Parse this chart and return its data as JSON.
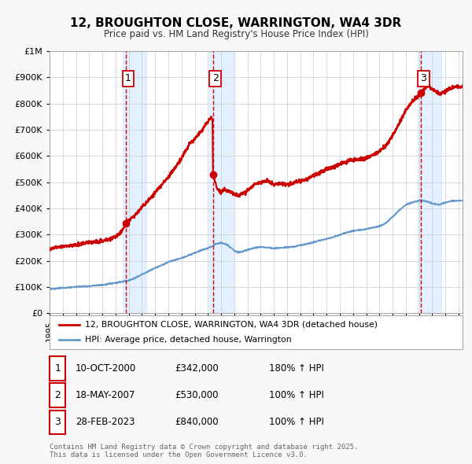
{
  "title": "12, BROUGHTON CLOSE, WARRINGTON, WA4 3DR",
  "subtitle": "Price paid vs. HM Land Registry's House Price Index (HPI)",
  "background_color": "#f8f8f8",
  "plot_bg_color": "#ffffff",
  "grid_color": "#cccccc",
  "house_color": "#cc0000",
  "hpi_color": "#6699cc",
  "sale_points": [
    {
      "date_num": 2000.78,
      "price": 342000,
      "label": "1"
    },
    {
      "date_num": 2007.38,
      "price": 530000,
      "label": "2"
    },
    {
      "date_num": 2023.16,
      "price": 840000,
      "label": "3"
    }
  ],
  "vline_dates": [
    2000.78,
    2007.38,
    2023.16
  ],
  "vline_color": "#dd0000",
  "shade_color": "#ddeeff",
  "ylim": [
    0,
    1000000
  ],
  "xlim_start": 1995.0,
  "xlim_end": 2026.3,
  "yticks": [
    0,
    100000,
    200000,
    300000,
    400000,
    500000,
    600000,
    700000,
    800000,
    900000,
    1000000
  ],
  "ytick_labels": [
    "£0",
    "£100K",
    "£200K",
    "£300K",
    "£400K",
    "£500K",
    "£600K",
    "£700K",
    "£800K",
    "£900K",
    "£1M"
  ],
  "xticks": [
    1995,
    1996,
    1997,
    1998,
    1999,
    2000,
    2001,
    2002,
    2003,
    2004,
    2005,
    2006,
    2007,
    2008,
    2009,
    2010,
    2011,
    2012,
    2013,
    2014,
    2015,
    2016,
    2017,
    2018,
    2019,
    2020,
    2021,
    2022,
    2023,
    2024,
    2025,
    2026
  ],
  "legend_line1": "12, BROUGHTON CLOSE, WARRINGTON, WA4 3DR (detached house)",
  "legend_line2": "HPI: Average price, detached house, Warrington",
  "table_rows": [
    {
      "num": "1",
      "date": "10-OCT-2000",
      "price": "£342,000",
      "change": "180% ↑ HPI"
    },
    {
      "num": "2",
      "date": "18-MAY-2007",
      "price": "£530,000",
      "change": "100% ↑ HPI"
    },
    {
      "num": "3",
      "date": "28-FEB-2023",
      "price": "£840,000",
      "change": "100% ↑ HPI"
    }
  ],
  "footer": "Contains HM Land Registry data © Crown copyright and database right 2025.\nThis data is licensed under the Open Government Licence v3.0.",
  "house_waypoints": [
    [
      1995.0,
      245000
    ],
    [
      1995.5,
      250000
    ],
    [
      1996.0,
      255000
    ],
    [
      1996.5,
      258000
    ],
    [
      1997.0,
      260000
    ],
    [
      1997.5,
      265000
    ],
    [
      1998.0,
      270000
    ],
    [
      1998.5,
      272000
    ],
    [
      1999.0,
      275000
    ],
    [
      1999.5,
      282000
    ],
    [
      2000.0,
      290000
    ],
    [
      2000.5,
      315000
    ],
    [
      2000.78,
      342000
    ],
    [
      2001.0,
      355000
    ],
    [
      2001.5,
      375000
    ],
    [
      2002.0,
      405000
    ],
    [
      2002.5,
      430000
    ],
    [
      2003.0,
      460000
    ],
    [
      2003.5,
      490000
    ],
    [
      2004.0,
      520000
    ],
    [
      2004.5,
      555000
    ],
    [
      2005.0,
      590000
    ],
    [
      2005.3,
      620000
    ],
    [
      2005.6,
      645000
    ],
    [
      2006.0,
      665000
    ],
    [
      2006.3,
      685000
    ],
    [
      2006.6,
      700000
    ],
    [
      2006.8,
      718000
    ],
    [
      2007.0,
      730000
    ],
    [
      2007.2,
      745000
    ],
    [
      2007.35,
      742000
    ],
    [
      2007.38,
      530000
    ],
    [
      2007.5,
      510000
    ],
    [
      2007.7,
      475000
    ],
    [
      2008.0,
      462000
    ],
    [
      2008.3,
      470000
    ],
    [
      2008.7,
      465000
    ],
    [
      2009.0,
      455000
    ],
    [
      2009.3,
      448000
    ],
    [
      2009.6,
      455000
    ],
    [
      2010.0,
      468000
    ],
    [
      2010.5,
      490000
    ],
    [
      2011.0,
      500000
    ],
    [
      2011.5,
      505000
    ],
    [
      2012.0,
      490000
    ],
    [
      2012.5,
      495000
    ],
    [
      2013.0,
      490000
    ],
    [
      2013.5,
      498000
    ],
    [
      2014.0,
      505000
    ],
    [
      2014.5,
      510000
    ],
    [
      2015.0,
      525000
    ],
    [
      2015.5,
      538000
    ],
    [
      2016.0,
      548000
    ],
    [
      2016.5,
      558000
    ],
    [
      2017.0,
      568000
    ],
    [
      2017.5,
      578000
    ],
    [
      2018.0,
      585000
    ],
    [
      2018.5,
      588000
    ],
    [
      2019.0,
      592000
    ],
    [
      2019.5,
      605000
    ],
    [
      2020.0,
      618000
    ],
    [
      2020.5,
      640000
    ],
    [
      2021.0,
      678000
    ],
    [
      2021.5,
      725000
    ],
    [
      2022.0,
      775000
    ],
    [
      2022.5,
      808000
    ],
    [
      2023.0,
      832000
    ],
    [
      2023.16,
      840000
    ],
    [
      2023.4,
      858000
    ],
    [
      2023.7,
      868000
    ],
    [
      2024.0,
      855000
    ],
    [
      2024.3,
      845000
    ],
    [
      2024.6,
      838000
    ],
    [
      2025.0,
      848000
    ],
    [
      2025.4,
      860000
    ],
    [
      2025.8,
      865000
    ],
    [
      2026.3,
      862000
    ]
  ],
  "hpi_waypoints": [
    [
      1995.0,
      92000
    ],
    [
      1995.5,
      94000
    ],
    [
      1996.0,
      97000
    ],
    [
      1996.5,
      98000
    ],
    [
      1997.0,
      100000
    ],
    [
      1997.5,
      102000
    ],
    [
      1998.0,
      103000
    ],
    [
      1998.5,
      106000
    ],
    [
      1999.0,
      108000
    ],
    [
      1999.5,
      112000
    ],
    [
      2000.0,
      115000
    ],
    [
      2000.5,
      120000
    ],
    [
      2001.0,
      125000
    ],
    [
      2001.5,
      135000
    ],
    [
      2002.0,
      148000
    ],
    [
      2002.5,
      160000
    ],
    [
      2003.0,
      172000
    ],
    [
      2003.5,
      183000
    ],
    [
      2004.0,
      195000
    ],
    [
      2004.5,
      203000
    ],
    [
      2005.0,
      210000
    ],
    [
      2005.5,
      220000
    ],
    [
      2006.0,
      230000
    ],
    [
      2006.5,
      240000
    ],
    [
      2007.0,
      248000
    ],
    [
      2007.38,
      256000
    ],
    [
      2007.6,
      265000
    ],
    [
      2008.0,
      268000
    ],
    [
      2008.4,
      262000
    ],
    [
      2008.8,
      248000
    ],
    [
      2009.0,
      238000
    ],
    [
      2009.3,
      232000
    ],
    [
      2009.6,
      235000
    ],
    [
      2010.0,
      242000
    ],
    [
      2010.5,
      248000
    ],
    [
      2011.0,
      253000
    ],
    [
      2011.5,
      250000
    ],
    [
      2012.0,
      247000
    ],
    [
      2012.5,
      249000
    ],
    [
      2013.0,
      251000
    ],
    [
      2013.5,
      254000
    ],
    [
      2014.0,
      259000
    ],
    [
      2014.5,
      264000
    ],
    [
      2015.0,
      271000
    ],
    [
      2015.5,
      277000
    ],
    [
      2016.0,
      284000
    ],
    [
      2016.5,
      291000
    ],
    [
      2017.0,
      299000
    ],
    [
      2017.5,
      307000
    ],
    [
      2018.0,
      314000
    ],
    [
      2018.5,
      317000
    ],
    [
      2019.0,
      321000
    ],
    [
      2019.5,
      327000
    ],
    [
      2020.0,
      331000
    ],
    [
      2020.5,
      344000
    ],
    [
      2021.0,
      368000
    ],
    [
      2021.5,
      393000
    ],
    [
      2022.0,
      413000
    ],
    [
      2022.5,
      423000
    ],
    [
      2023.0,
      429000
    ],
    [
      2023.16,
      431000
    ],
    [
      2023.5,
      427000
    ],
    [
      2024.0,
      419000
    ],
    [
      2024.5,
      414000
    ],
    [
      2025.0,
      422000
    ],
    [
      2025.5,
      428000
    ],
    [
      2026.3,
      430000
    ]
  ]
}
